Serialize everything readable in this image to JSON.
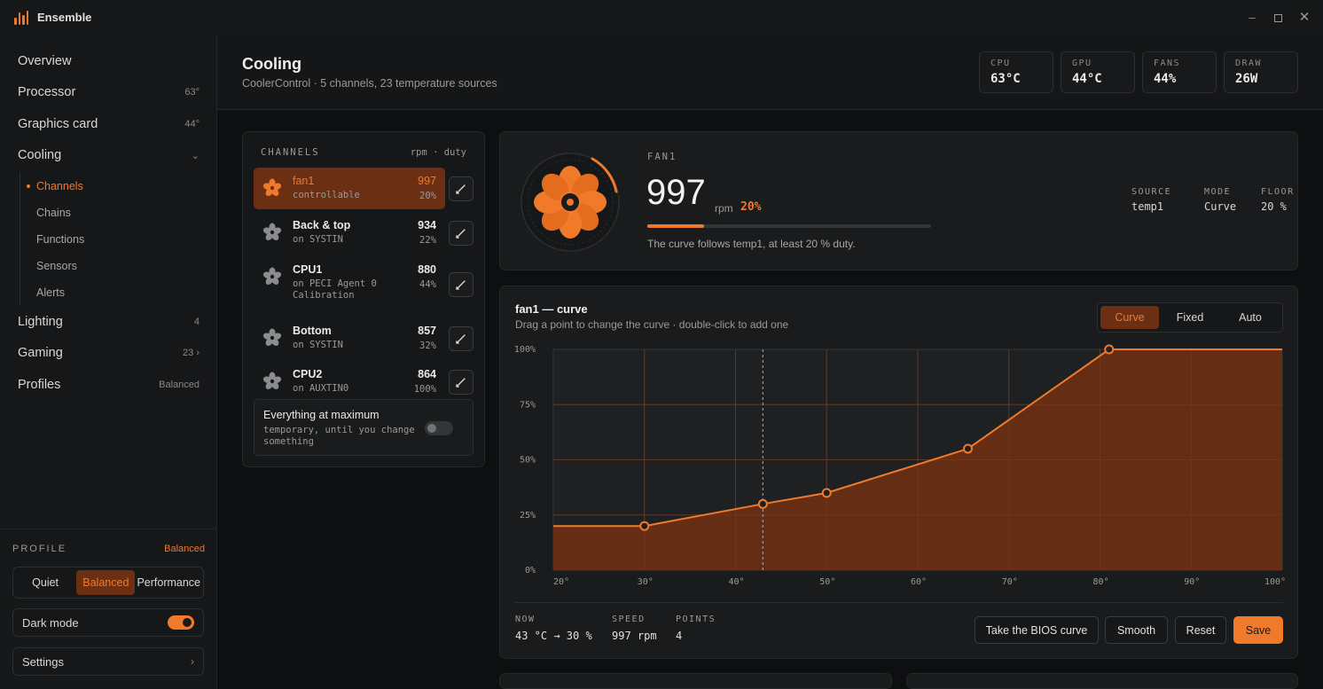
{
  "app": {
    "title": "Ensemble"
  },
  "sidebar": {
    "items": [
      {
        "label": "Overview",
        "meta": ""
      },
      {
        "label": "Processor",
        "meta": "63°"
      },
      {
        "label": "Graphics card",
        "meta": "44°"
      },
      {
        "label": "Cooling",
        "meta": "⌄"
      },
      {
        "label": "Lighting",
        "meta": "4"
      },
      {
        "label": "Gaming",
        "meta": "23 ›"
      },
      {
        "label": "Profiles",
        "meta": "Balanced"
      }
    ],
    "subitems": [
      "Channels",
      "Chains",
      "Functions",
      "Sensors",
      "Alerts"
    ],
    "profile": {
      "label": "PROFILE",
      "current": "Balanced",
      "options": [
        "Quiet",
        "Balanced",
        "Performance"
      ]
    },
    "dark_mode_label": "Dark mode",
    "settings_label": "Settings",
    "settings_chevron": "›"
  },
  "header": {
    "title": "Cooling",
    "subtitle": "CoolerControl · 5 channels, 23 temperature sources",
    "stats": [
      {
        "key": "CPU",
        "value": "63°C"
      },
      {
        "key": "GPU",
        "value": "44°C"
      },
      {
        "key": "FANS",
        "value": "44%"
      },
      {
        "key": "DRAW",
        "value": "26W"
      }
    ]
  },
  "channels": {
    "heading": "CHANNELS",
    "heading_right": "rpm · duty",
    "rows": [
      {
        "name": "fan1",
        "desc": "controllable",
        "rpm": "997",
        "duty": "20%"
      },
      {
        "name": "Back & top",
        "desc": "on SYSTIN",
        "rpm": "934",
        "duty": "22%"
      },
      {
        "name": "CPU1",
        "desc": "on PECI Agent 0 Calibration",
        "rpm": "880",
        "duty": "44%"
      },
      {
        "name": "Bottom",
        "desc": "on SYSTIN",
        "rpm": "857",
        "duty": "32%"
      },
      {
        "name": "CPU2",
        "desc": "on AUXTIN0",
        "rpm": "864",
        "duty": "100%"
      }
    ],
    "max_title": "Everything at maximum",
    "max_desc": "temporary, until you change something"
  },
  "fan": {
    "label": "FAN1",
    "rpm": "997",
    "unit": "rpm",
    "duty": "20%",
    "duty_fraction": 0.2,
    "note": "The curve follows temp1, at least 20 % duty.",
    "details": [
      {
        "key": "SOURCE",
        "value": "temp1"
      },
      {
        "key": "MODE",
        "value": "Curve"
      },
      {
        "key": "FLOOR",
        "value": "20 %"
      }
    ]
  },
  "curve": {
    "title": "fan1 — curve",
    "subtitle": "Drag a point to change the curve · double-click to add one",
    "modes": [
      "Curve",
      "Fixed",
      "Auto"
    ],
    "active_mode": "Curve",
    "footer": [
      {
        "key": "NOW",
        "value": "43 °C → 30 %"
      },
      {
        "key": "SPEED",
        "value": "997 rpm"
      },
      {
        "key": "POINTS",
        "value": "4"
      }
    ],
    "buttons": [
      "Take the BIOS curve",
      "Smooth",
      "Reset",
      "Save"
    ]
  },
  "chart_data": {
    "type": "area",
    "x": [
      20,
      30,
      43,
      50,
      65.5,
      81,
      100
    ],
    "y": [
      20,
      20,
      30,
      35,
      55,
      100,
      100
    ],
    "points": [
      [
        30,
        20
      ],
      [
        43,
        30
      ],
      [
        50,
        35
      ],
      [
        65.5,
        55
      ],
      [
        81,
        100
      ]
    ],
    "now_x": 43,
    "xlim": [
      20,
      100
    ],
    "ylim": [
      0,
      100
    ],
    "x_ticks": [
      "20°",
      "30°",
      "40°",
      "50°",
      "60°",
      "70°",
      "80°",
      "90°",
      "100°"
    ],
    "y_ticks": [
      "0%",
      "25%",
      "50%",
      "75%",
      "100%"
    ],
    "grid": true,
    "colors": {
      "line": "#f07a2a",
      "fill": "#6b2f14"
    }
  }
}
